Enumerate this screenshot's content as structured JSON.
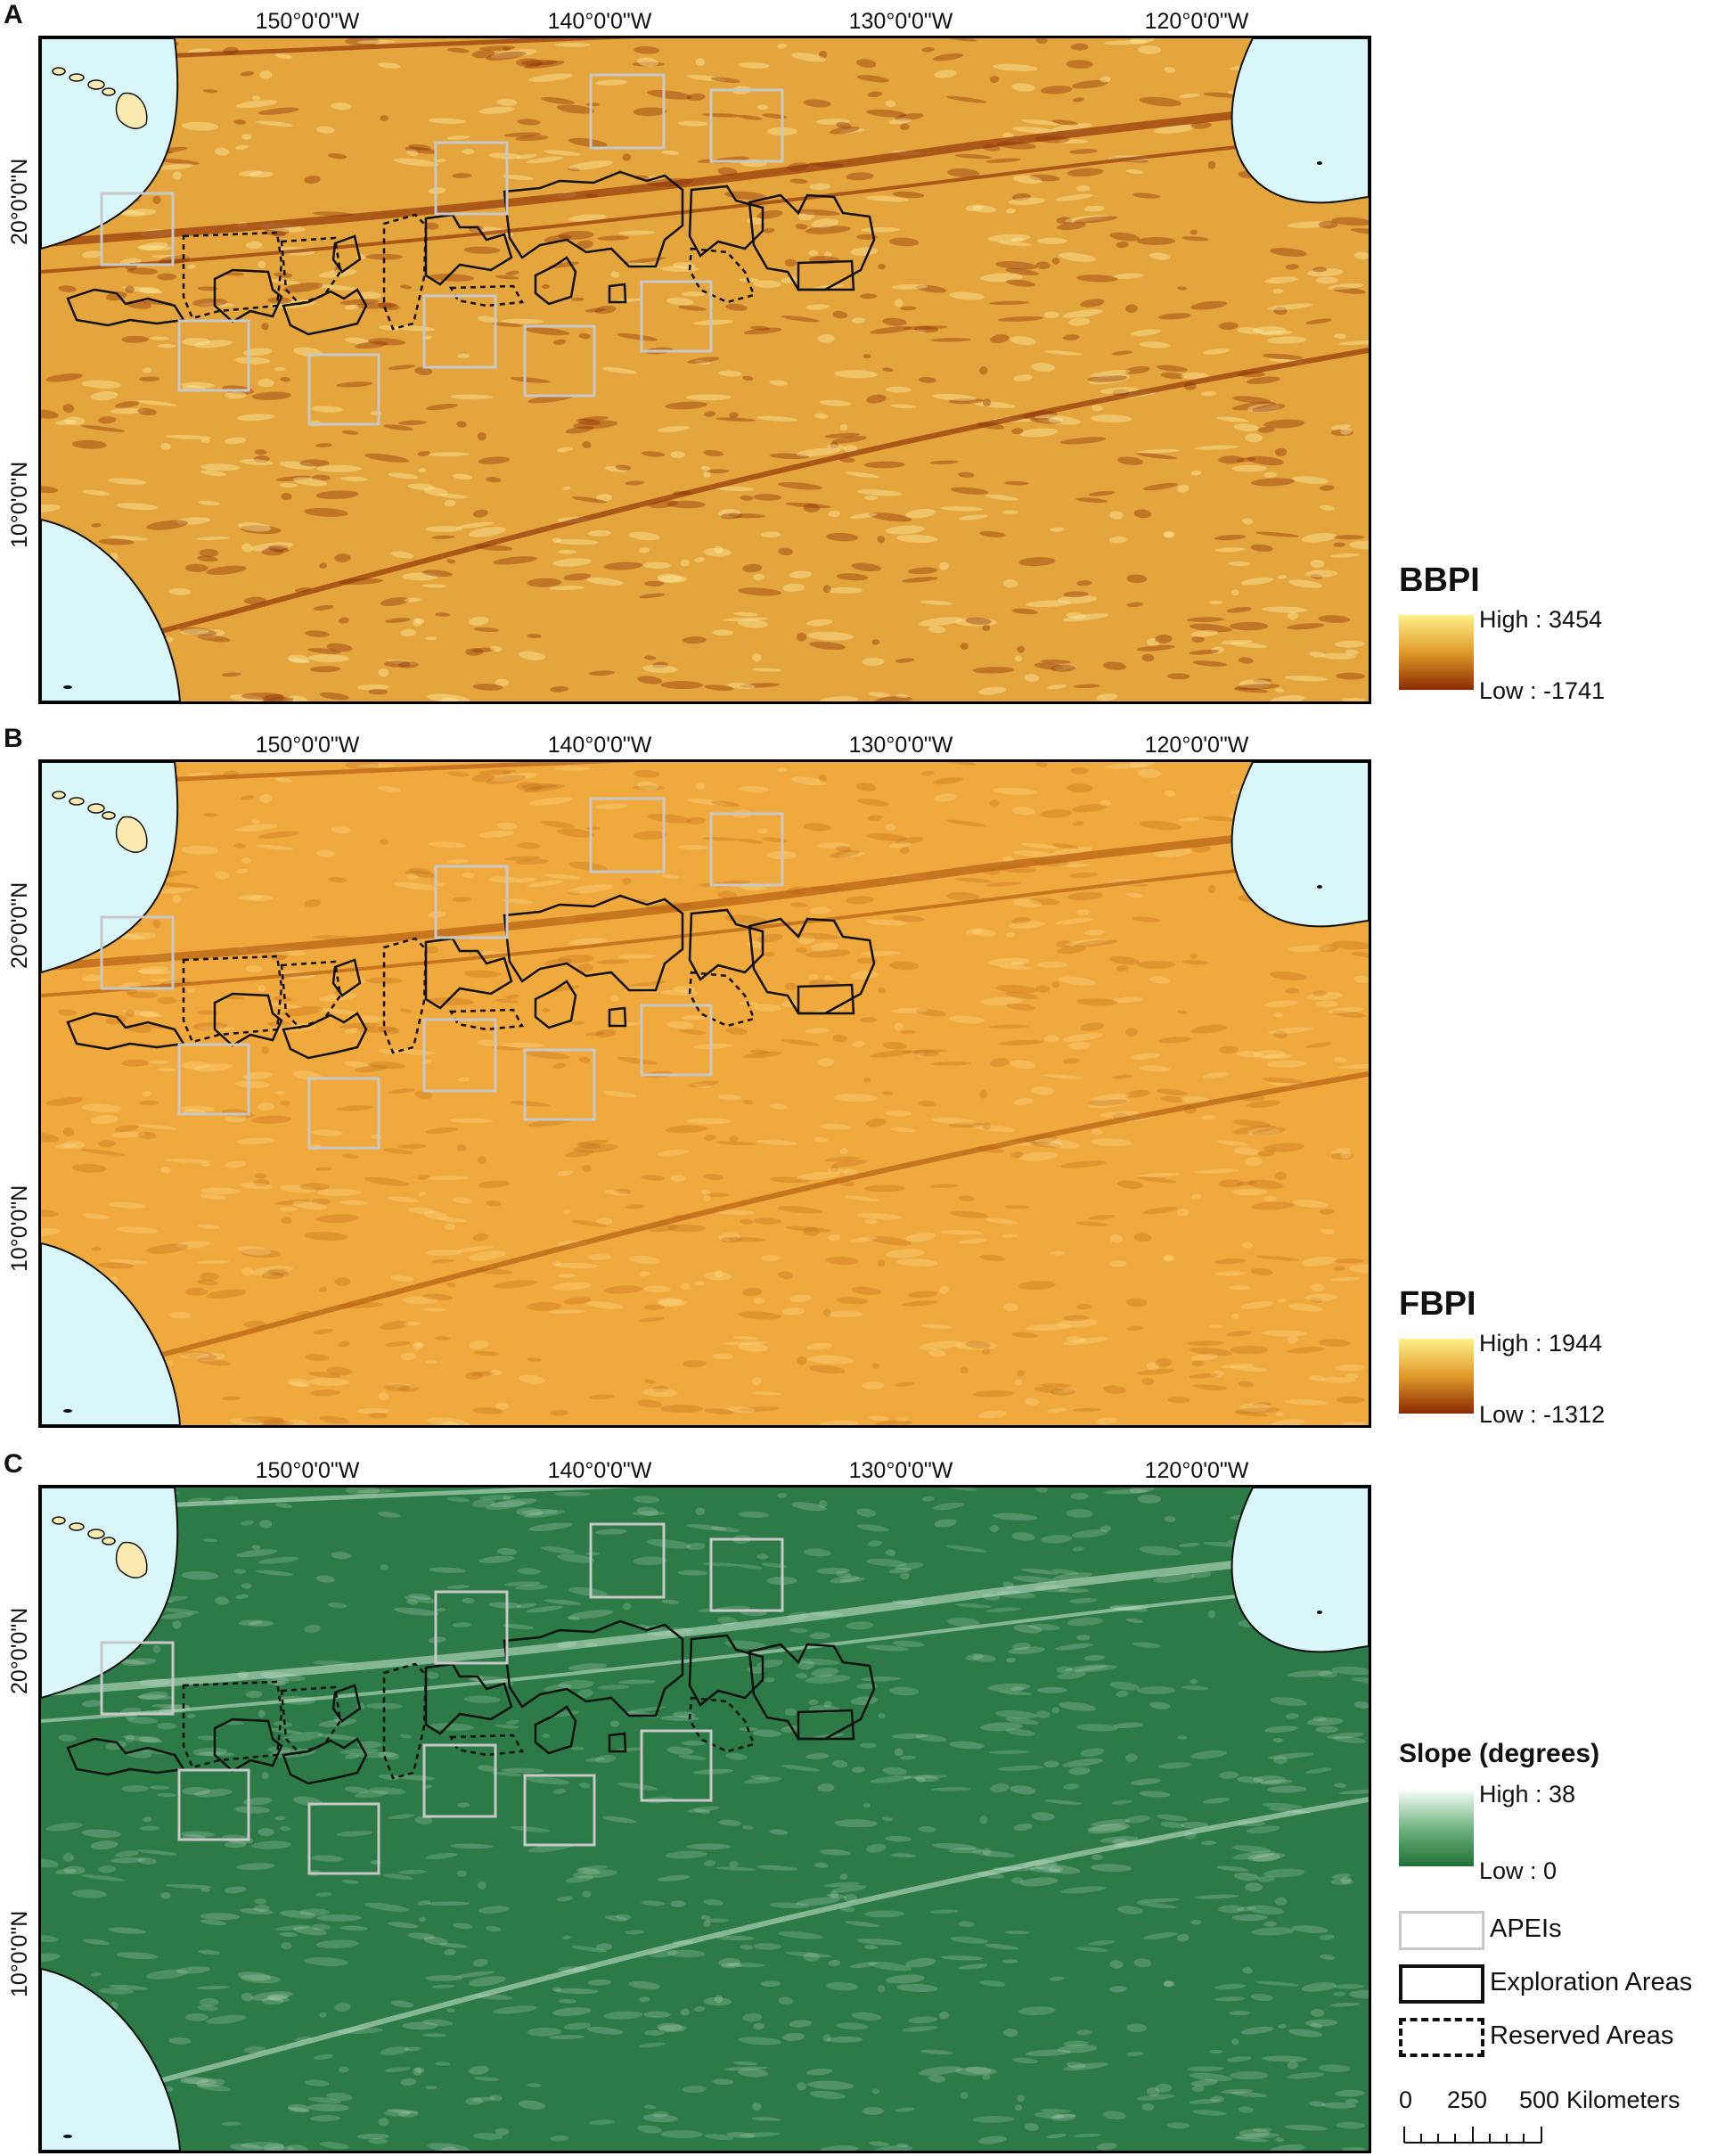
{
  "panels": [
    {
      "letter": "A",
      "legend_title": "BBPI",
      "high": "High : 3454",
      "low": "Low : -1741",
      "ramp_colors": [
        "#fff08a",
        "#e09a2a",
        "#8a2a02"
      ]
    },
    {
      "letter": "B",
      "legend_title": "FBPI",
      "high": "High : 1944",
      "low": "Low : -1312",
      "ramp_colors": [
        "#fff08a",
        "#e09a2a",
        "#8a2a02"
      ]
    },
    {
      "letter": "C",
      "legend_title": "Slope (degrees)",
      "high": "High : 38",
      "low": "Low : 0",
      "ramp_colors": [
        "#f2fbf4",
        "#6fb27f",
        "#1f7036"
      ]
    }
  ],
  "lon_labels": [
    "150°0'0\"W",
    "140°0'0\"W",
    "130°0'0\"W",
    "120°0'0\"W"
  ],
  "lat_labels": [
    "20°0'0\"N",
    "10°0'0\"N"
  ],
  "map_colors": {
    "panel_a": "#e4a53d",
    "panel_b": "#f0a93c",
    "panel_c": "#2c7a45",
    "land_buffer": "#d9f6f8",
    "island": "#fbeab0",
    "apei": "#c8c8c8",
    "areas": "#111111"
  },
  "key": {
    "apei": "APEIs",
    "exploration": "Exploration Areas",
    "reserved": "Reserved Areas"
  },
  "scale": {
    "ticks": [
      "0",
      "250",
      "500"
    ],
    "unit": "Kilometers"
  }
}
